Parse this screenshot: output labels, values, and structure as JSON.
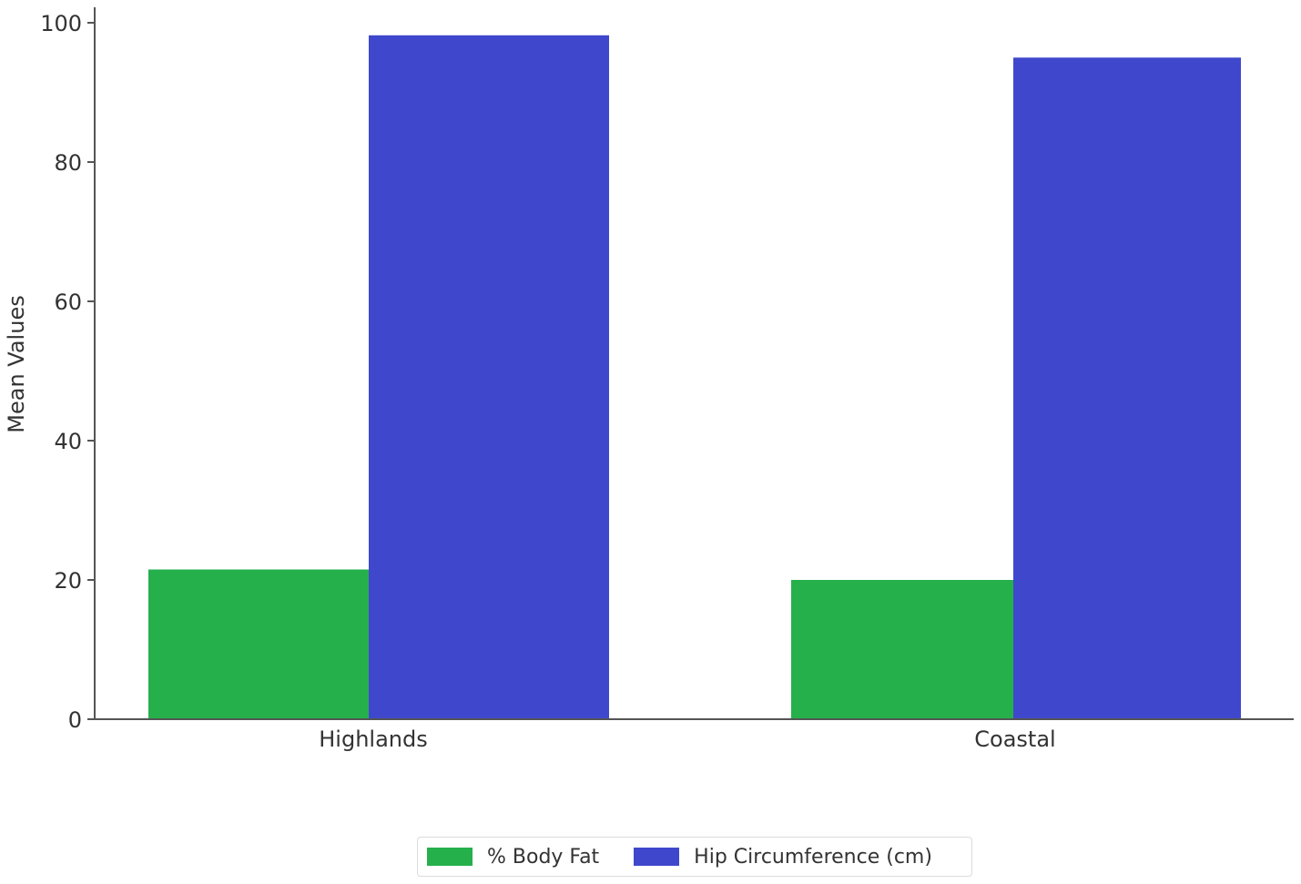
{
  "chart_data": {
    "type": "bar",
    "categories": [
      "Highlands",
      "Coastal"
    ],
    "series": [
      {
        "name": "% Body Fat",
        "values": [
          21.5,
          20.0
        ],
        "color": "#25b04c"
      },
      {
        "name": "Hip Circumference (cm)",
        "values": [
          98.2,
          95.0
        ],
        "color": "#3f48cc"
      }
    ],
    "xlabel": "",
    "ylabel": "Mean Values",
    "ylim": [
      0,
      100
    ],
    "yticks": [
      "0",
      "20",
      "40",
      "60",
      "80",
      "100"
    ],
    "grid": false,
    "legend_position": "bottom-center"
  }
}
